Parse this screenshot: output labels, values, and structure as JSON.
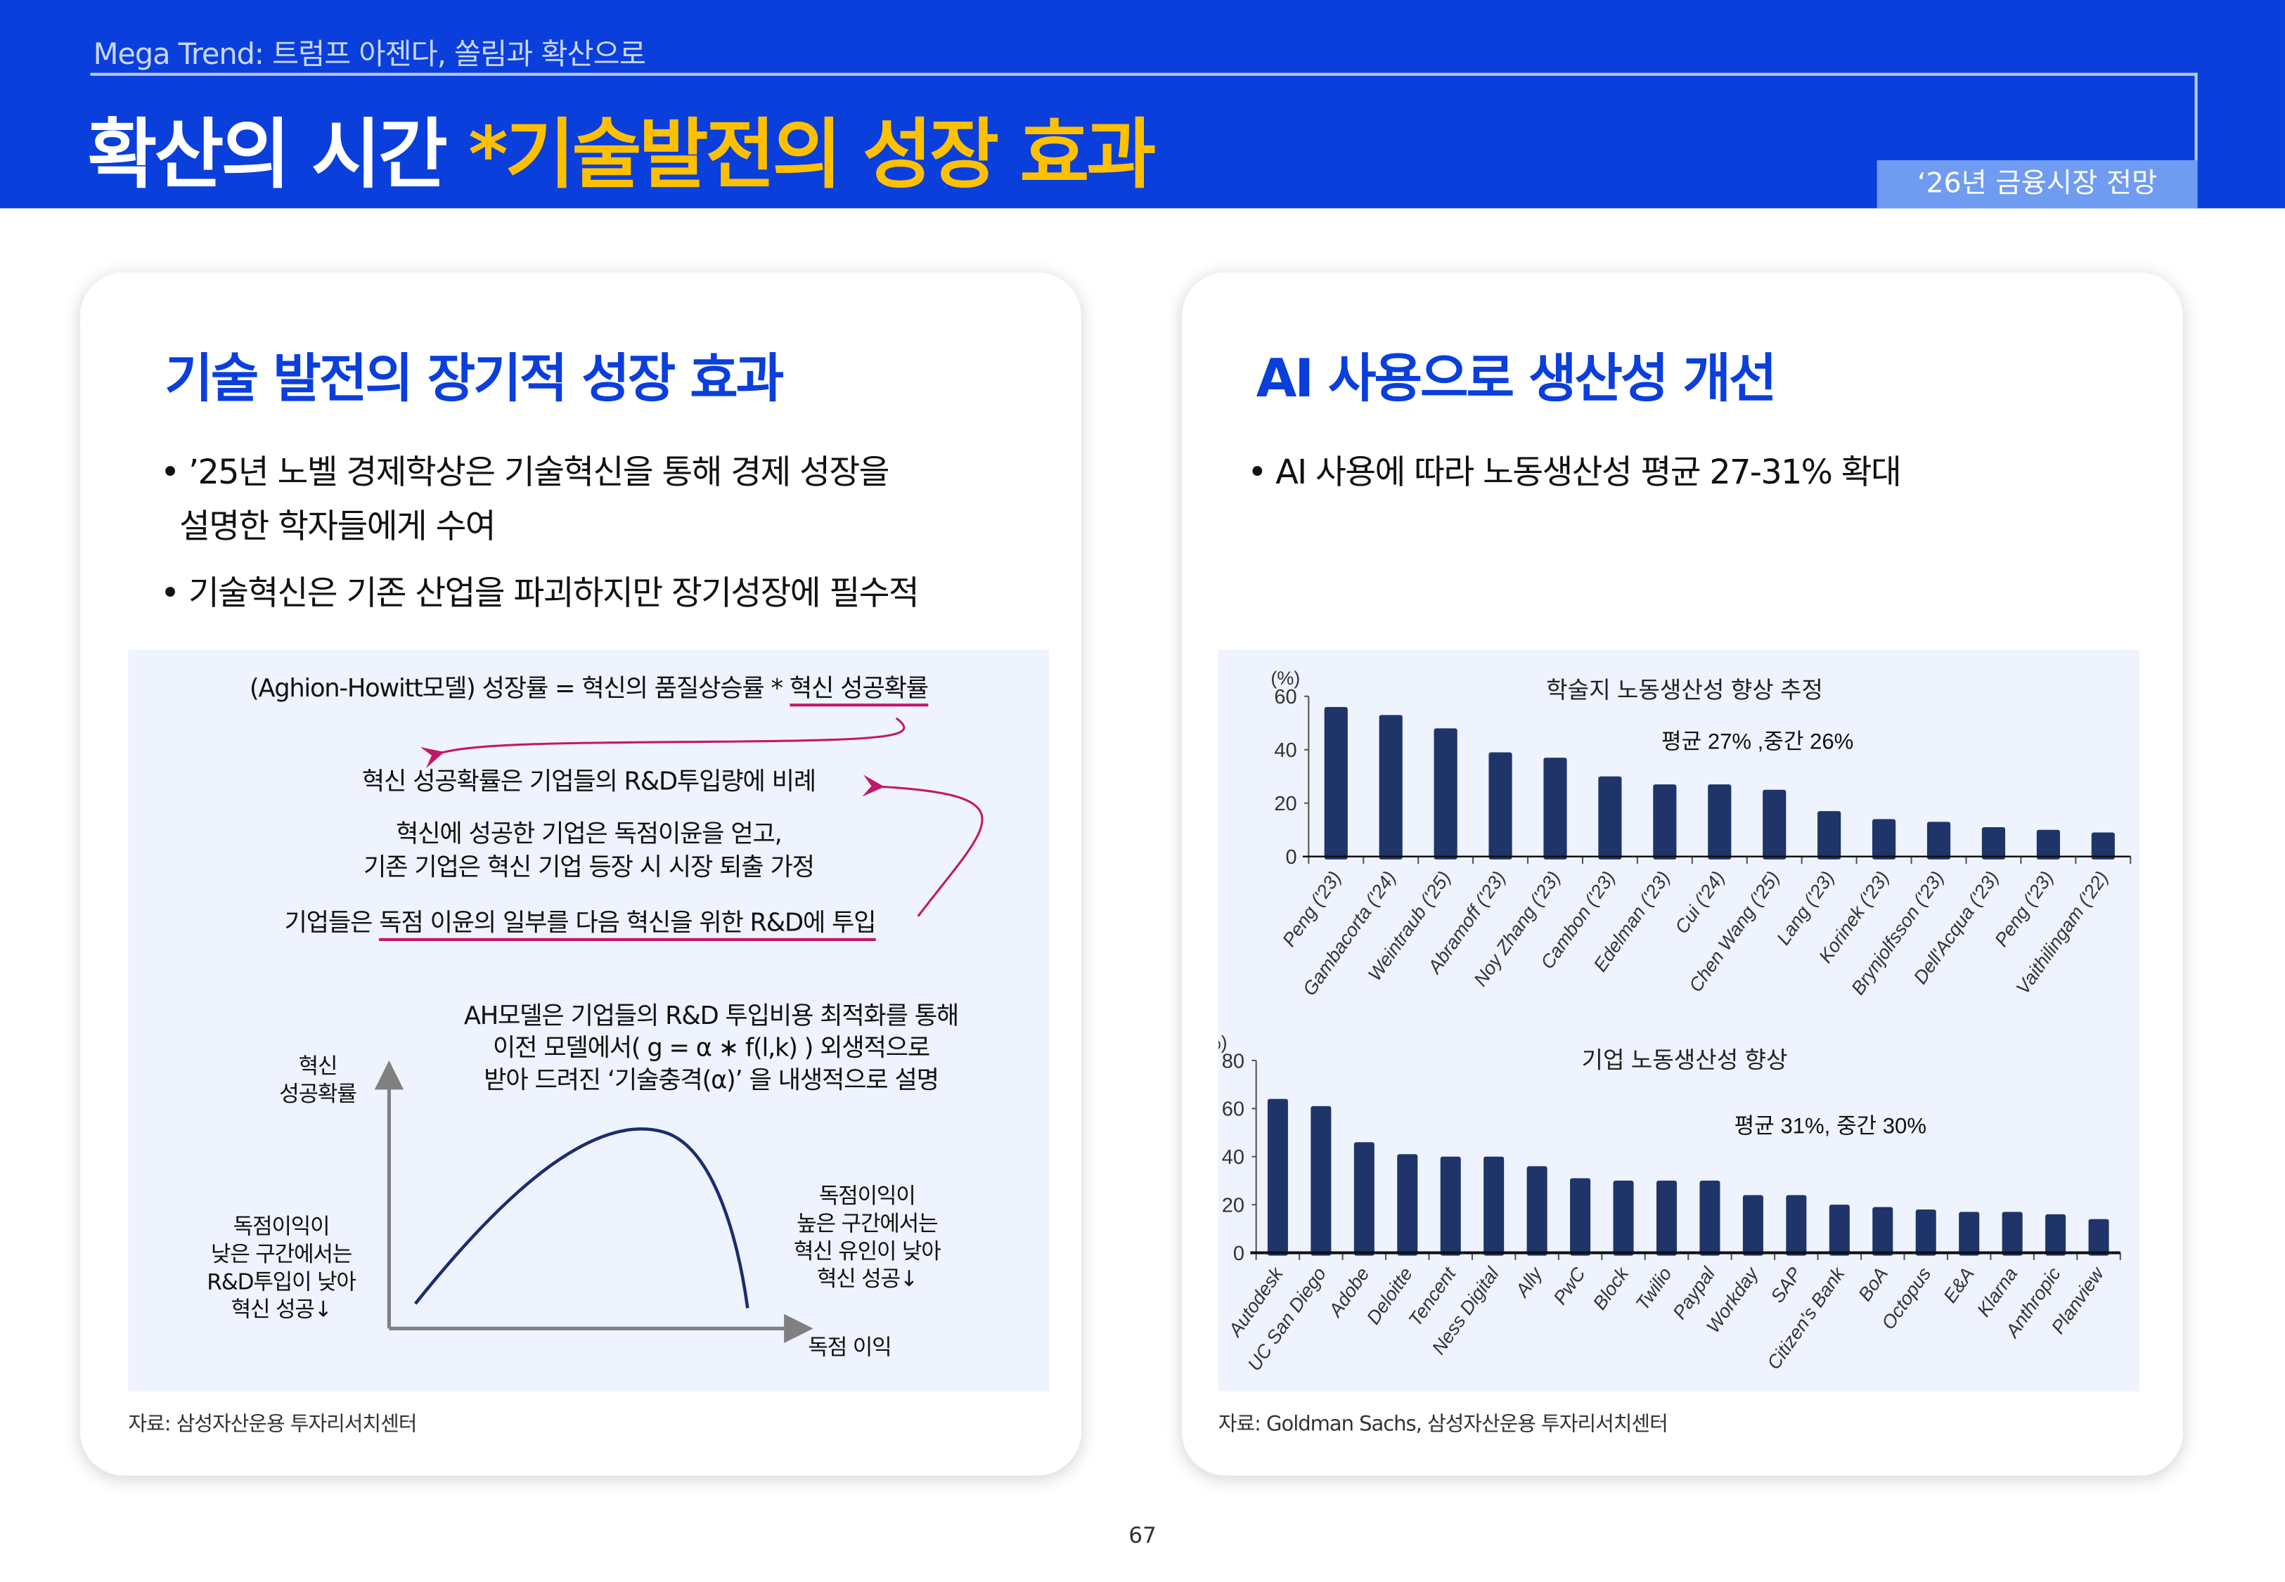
{
  "header": {
    "mega_trend": "Mega Trend: 트럼프 아젠다, 쏠림과 확산으로",
    "title_main": "확산의 시간",
    "title_accent": "*기술발전의 성장 효과",
    "badge": "‘26년 금융시장 전망"
  },
  "left_card": {
    "title": "기술 발전의 장기적 성장 효과",
    "bullets": [
      "’25년 노벨 경제학상은 기술혁신을 통해 경제 성장을",
      "설명한 학자들에게 수여",
      "기술혁신은 기존 산업을 파괴하지만 장기성장에 필수적"
    ],
    "diagram": {
      "formula_prefix": "(Aghion-Howitt모델) 성장률 = 혁신의 품질상승률 * ",
      "formula_underlined": "혁신 성공확률",
      "line1": "혁신 성공확률은 기업들의 R&D투입량에 비례",
      "line2a": "혁신에 성공한 기업은 독점이윤을 얻고,",
      "line2b": "기존 기업은 혁신 기업 등장 시 시장 퇴출 가정",
      "line3_prefix": "기업들은 ",
      "line3_underlined": "독점 이윤의 일부를 다음 혁신을 위한 R&D에 투입",
      "ah1": "AH모델은 기업들의 R&D 투입비용 최적화를 통해",
      "ah2": "이전 모델에서( g = α ∗ f(l,k) ) 외생적으로",
      "ah3": "받아 드려진 ‘기술충격(α)’ 을 내생적으로 설명",
      "y_axis_1": "혁신",
      "y_axis_2": "성공확률",
      "x_axis": "독점 이익",
      "left_note": [
        "독점이익이",
        "낮은 구간에서는",
        "R&D투입이 낮아",
        "혁신 성공↓"
      ],
      "right_note": [
        "독점이익이",
        "높은 구간에서는",
        "혁신 유인이 낮아",
        "혁신 성공↓"
      ]
    },
    "source": "자료: 삼성자산운용 투자리서치센터"
  },
  "right_card": {
    "title": "AI 사용으로 생산성 개선",
    "bullet": "AI 사용에 따라 노동생산성 평균 27-31% 확대",
    "source": "자료: Goldman Sachs, 삼성자산운용 투자리서치센터"
  },
  "chart_data": [
    {
      "type": "bar",
      "title": "학술지 노동생산성 향상 추정",
      "annotation": "평균 27% ,중간 26%",
      "ylabel": "(%)",
      "ylim": [
        0,
        60
      ],
      "yticks": [
        "0",
        "20",
        "40",
        "60"
      ],
      "color": "#1f3468",
      "categories": [
        "Peng ('23)",
        "Gambacorta ('24)",
        "Weintraub ('25)",
        "Abramoff ('23)",
        "Noy Zhang ('23)",
        "Cambon ('23)",
        "Edelman ('23)",
        "Cui ('24)",
        "Chen Wang ('25)",
        "Lang ('23)",
        "Korinek ('23)",
        "Brynjolfsson ('23)",
        "Dell'Acqua ('23)",
        "Peng ('23)",
        "Vaithilingam ('22)"
      ],
      "values": [
        56,
        53,
        48,
        39,
        37,
        30,
        27,
        27,
        25,
        17,
        14,
        13,
        11,
        10,
        9
      ]
    },
    {
      "type": "bar",
      "title": "기업 노동생산성 향상",
      "annotation": "평균 31%, 중간 30%",
      "ylabel": "(%)",
      "ylim": [
        0,
        80
      ],
      "yticks": [
        "0",
        "20",
        "40",
        "60",
        "80"
      ],
      "color": "#1f3468",
      "categories": [
        "Autodesk",
        "UC San Diego",
        "Adobe",
        "Deloitte",
        "Tencent",
        "Ness Digital",
        "Ally",
        "PwC",
        "Block",
        "Twilio",
        "Paypal",
        "Workday",
        "SAP",
        "Citizen's Bank",
        "BoA",
        "Octopus",
        "E&A",
        "Klarna",
        "Anthropic",
        "Planview"
      ],
      "values": [
        64,
        61,
        46,
        41,
        40,
        40,
        36,
        31,
        30,
        30,
        30,
        24,
        24,
        20,
        19,
        18,
        17,
        17,
        16,
        14
      ]
    }
  ],
  "page_number": "67"
}
